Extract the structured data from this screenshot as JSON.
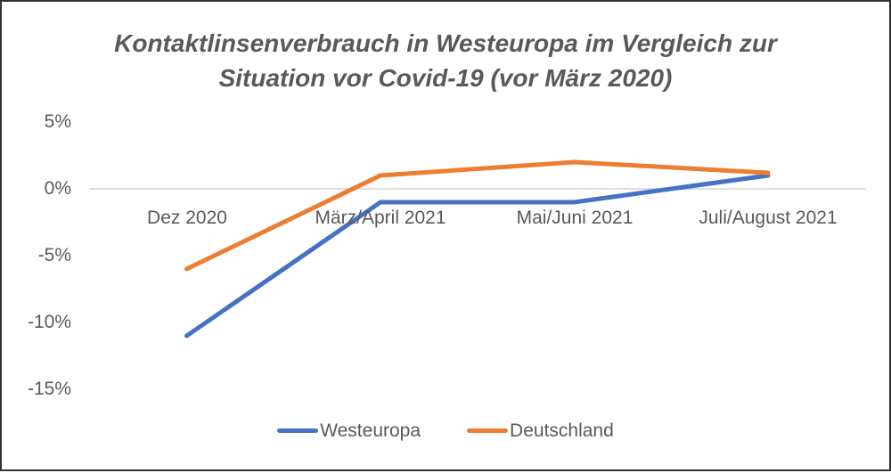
{
  "frame": {
    "background_color": "#ffffff",
    "border_color": "#333333"
  },
  "chart_data": {
    "type": "line",
    "title": "Kontaktlinsenverbrauch in Westeuropa im Vergleich zur Situation vor Covid-19 (vor März 2020)",
    "title_lines": [
      "Kontaktlinsenverbrauch in Westeuropa im Vergleich zur",
      "Situation vor Covid-19 (vor März 2020)"
    ],
    "categories": [
      "Dez 2020",
      "März/April 2021",
      "Mai/Juni 2021",
      "Juli/August 2021"
    ],
    "series": [
      {
        "name": "Westeuropa",
        "color": "#4472C4",
        "values": [
          -11,
          -1,
          -1,
          1
        ]
      },
      {
        "name": "Deutschland",
        "color": "#ED7D31",
        "values": [
          -6,
          1,
          2,
          1.2
        ]
      }
    ],
    "unit": "%",
    "y_tick_labels": [
      "5%",
      "0%",
      "-5%",
      "-10%",
      "-15%"
    ],
    "y_tick_values": [
      5,
      0,
      -5,
      -10,
      -15
    ],
    "ylim": [
      -15,
      5
    ],
    "gridlines": "only zero line",
    "gridline_color": "#D9D9D9",
    "text_color": "#595959",
    "title_color": "#595959",
    "legend_position": "bottom",
    "legend": [
      "Westeuropa",
      "Deutschland"
    ]
  }
}
